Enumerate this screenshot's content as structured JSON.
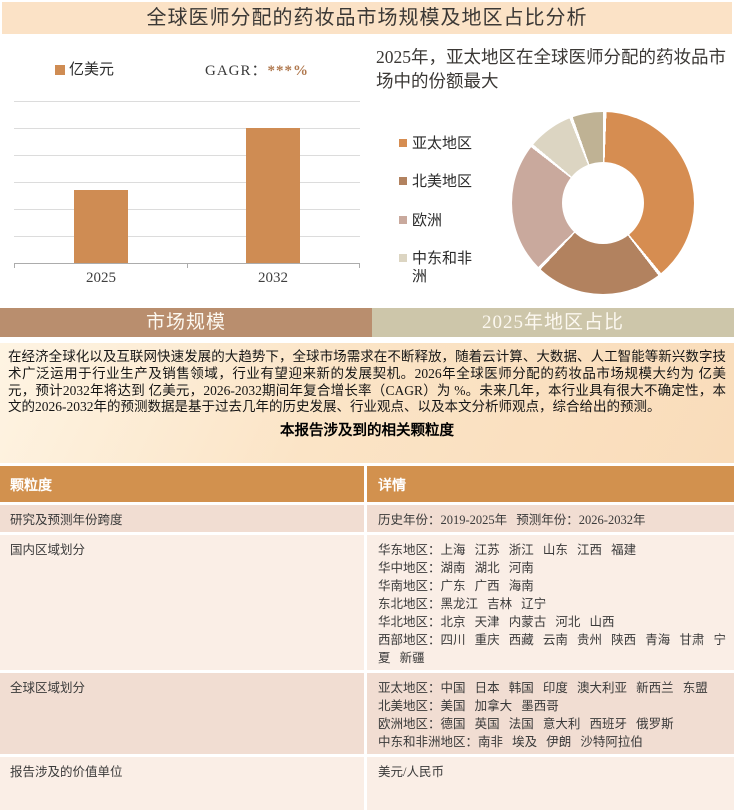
{
  "page_title": "全球医师分配的药妆品市场规模及地区占比分析",
  "tabs": {
    "market_size": "市场规模",
    "region_share": "2025年地区占比"
  },
  "summary": {
    "paragraph": "在经济全球化以及互联网快速发展的大趋势下，全球市场需求在不断释放，随着云计算、大数据、人工智能等新兴数字技术广泛运用于行业生产及销售领域，行业有望迎来新的发展契机。2026年全球医师分配的药妆品市场规模大约为 亿美元，预计2032年将达到 亿美元，2026-2032期间年复合增长率（CAGR）为 %。未来几年，本行业具有很大不确定性，本文的2026-2032年的预测数据是基于过去几年的历史发展、行业观点、以及本文分析师观点，综合给出的预测。",
    "table_caption": "本报告涉及到的相关颗粒度"
  },
  "table": {
    "headers": [
      "颗粒度",
      "详情"
    ],
    "rows": [
      {
        "label": "研究及预测年份跨度",
        "details": [
          "历史年份：2019-2025年 预测年份：2026-2032年"
        ]
      },
      {
        "label": "国内区域划分",
        "details": [
          "华东地区：上海 江苏 浙江 山东 江西 福建",
          "华中地区：湖南 湖北 河南",
          "华南地区：广东 广西 海南",
          "东北地区：黑龙江 吉林 辽宁",
          "华北地区：北京 天津 内蒙古 河北 山西",
          "西部地区：四川 重庆 西藏 云南 贵州 陕西 青海 甘肃 宁夏 新疆"
        ]
      },
      {
        "label": "全球区域划分",
        "details": [
          "亚太地区：中国 日本 韩国 印度 澳大利亚 新西兰 东盟",
          "北美地区：美国 加拿大 墨西哥",
          "欧洲地区：德国 英国 法国 意大利 西班牙 俄罗斯",
          "中东和非洲地区：南非 埃及 伊朗 沙特阿拉伯"
        ]
      },
      {
        "label": "报告涉及的价值单位",
        "details": [
          "美元/人民币"
        ]
      }
    ]
  },
  "colors": {
    "title_bar_bg": "#FBE2C6",
    "tab_left_bg": "#B98E6E",
    "tab_right_bg": "#CDC6AA",
    "table_header_bg": "#D2914E",
    "row_dark_bg": "#F1DDD2",
    "row_light_bg": "#FAEEE6",
    "cagr_value_color": "#B0794F"
  },
  "chart_data": [
    {
      "type": "bar",
      "categories": [
        "2025",
        "2032"
      ],
      "values": [
        54,
        100
      ],
      "unit_label": "亿美元",
      "cagr_label": "GAGR：",
      "cagr_value": "***%",
      "ylim": [
        0,
        120
      ],
      "gridlines": true,
      "ytick_labels_visible": false,
      "bar_color": "#CF8C53",
      "note": "no numeric y-axis labels shown; values are relative units read from gridlines"
    },
    {
      "type": "pie",
      "donut": true,
      "title": "2025年，亚太地区在全球医师分配的药妆品市场中的份额最大",
      "slices": [
        {
          "label": "亚太地区",
          "value": 39,
          "color": "#D68D51"
        },
        {
          "label": "北美地区",
          "value": 23,
          "color": "#B2825F"
        },
        {
          "label": "欧洲",
          "value": 23.5,
          "color": "#C9A99D"
        },
        {
          "label": "中东和非洲",
          "value": 8.5,
          "color": "#DCD5C2"
        },
        {
          "label": "",
          "value": 6,
          "color": "#BFB294"
        }
      ],
      "legend_position": "left",
      "values_unit": "estimated %"
    }
  ]
}
